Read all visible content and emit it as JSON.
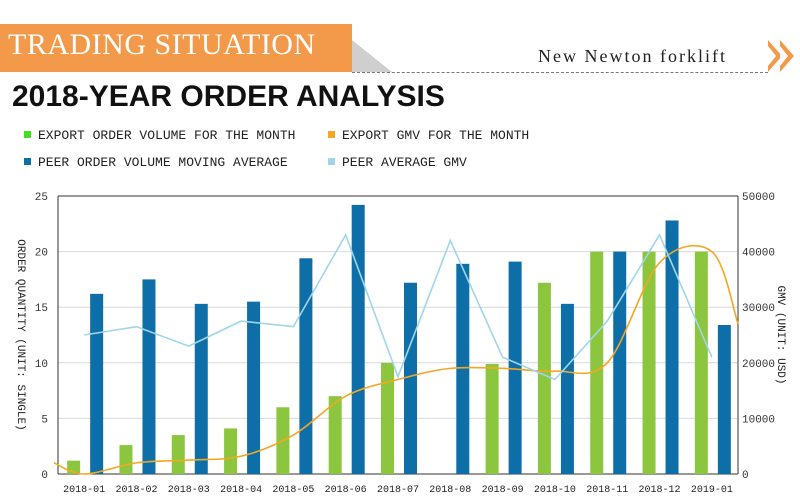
{
  "header": {
    "section_title": "TRADING SITUATION",
    "brand": "New Newton forklift",
    "page_title": "2018-YEAR ORDER ANALYSIS"
  },
  "legend": [
    {
      "label": "EXPORT ORDER VOLUME FOR THE MONTH",
      "color": "#44dd22"
    },
    {
      "label": "EXPORT GMV FOR THE MONTH",
      "color": "#f5a623"
    },
    {
      "label": "PEER ORDER VOLUME MOVING AVERAGE",
      "color": "#0e6fa8"
    },
    {
      "label": "PEER AVERAGE GMV",
      "color": "#9fd6ea"
    }
  ],
  "chart_data": {
    "type": "bar",
    "categories": [
      "2018-01",
      "2018-02",
      "2018-03",
      "2018-04",
      "2018-05",
      "2018-06",
      "2018-07",
      "2018-08",
      "2018-09",
      "2018-10",
      "2018-11",
      "2018-12",
      "2019-01"
    ],
    "ylabel": "ORDER QUANTITY (UNIT: SINGLE)",
    "y2label": "GMV (UNIT: USD)",
    "ylim": [
      0,
      25
    ],
    "y2lim": [
      0,
      50000
    ],
    "yticks": [
      "0",
      "5",
      "10",
      "15",
      "20",
      "25"
    ],
    "y2ticks": [
      "0",
      "10000",
      "20000",
      "30000",
      "40000",
      "50000"
    ],
    "grid": true,
    "series": [
      {
        "name": "EXPORT ORDER VOLUME FOR THE MONTH",
        "kind": "bar",
        "axis": "left",
        "color": "#8cc63f",
        "values": [
          1.2,
          2.6,
          3.5,
          4.1,
          6.0,
          7.0,
          10.0,
          0,
          9.9,
          17.2,
          20.0,
          20.0,
          20.0
        ]
      },
      {
        "name": "PEER ORDER VOLUME MOVING AVERAGE",
        "kind": "bar",
        "axis": "left",
        "color": "#0e6fa8",
        "values": [
          16.2,
          17.5,
          15.3,
          15.5,
          19.4,
          24.2,
          17.2,
          18.9,
          19.1,
          15.3,
          20.0,
          22.8,
          13.4
        ]
      },
      {
        "name": "EXPORT GMV FOR THE MONTH",
        "kind": "line",
        "axis": "right",
        "color": "#f5a623",
        "values": [
          0,
          2000,
          2500,
          3200,
          7000,
          14000,
          17000,
          19000,
          19000,
          18500,
          20000,
          38000,
          40000
        ]
      },
      {
        "name": "PEER AVERAGE GMV",
        "kind": "line",
        "axis": "right",
        "color": "#9fd6ea",
        "values": [
          25000,
          26500,
          23000,
          27500,
          26500,
          43000,
          17500,
          42000,
          21000,
          17000,
          27500,
          43000,
          21000
        ]
      }
    ]
  }
}
